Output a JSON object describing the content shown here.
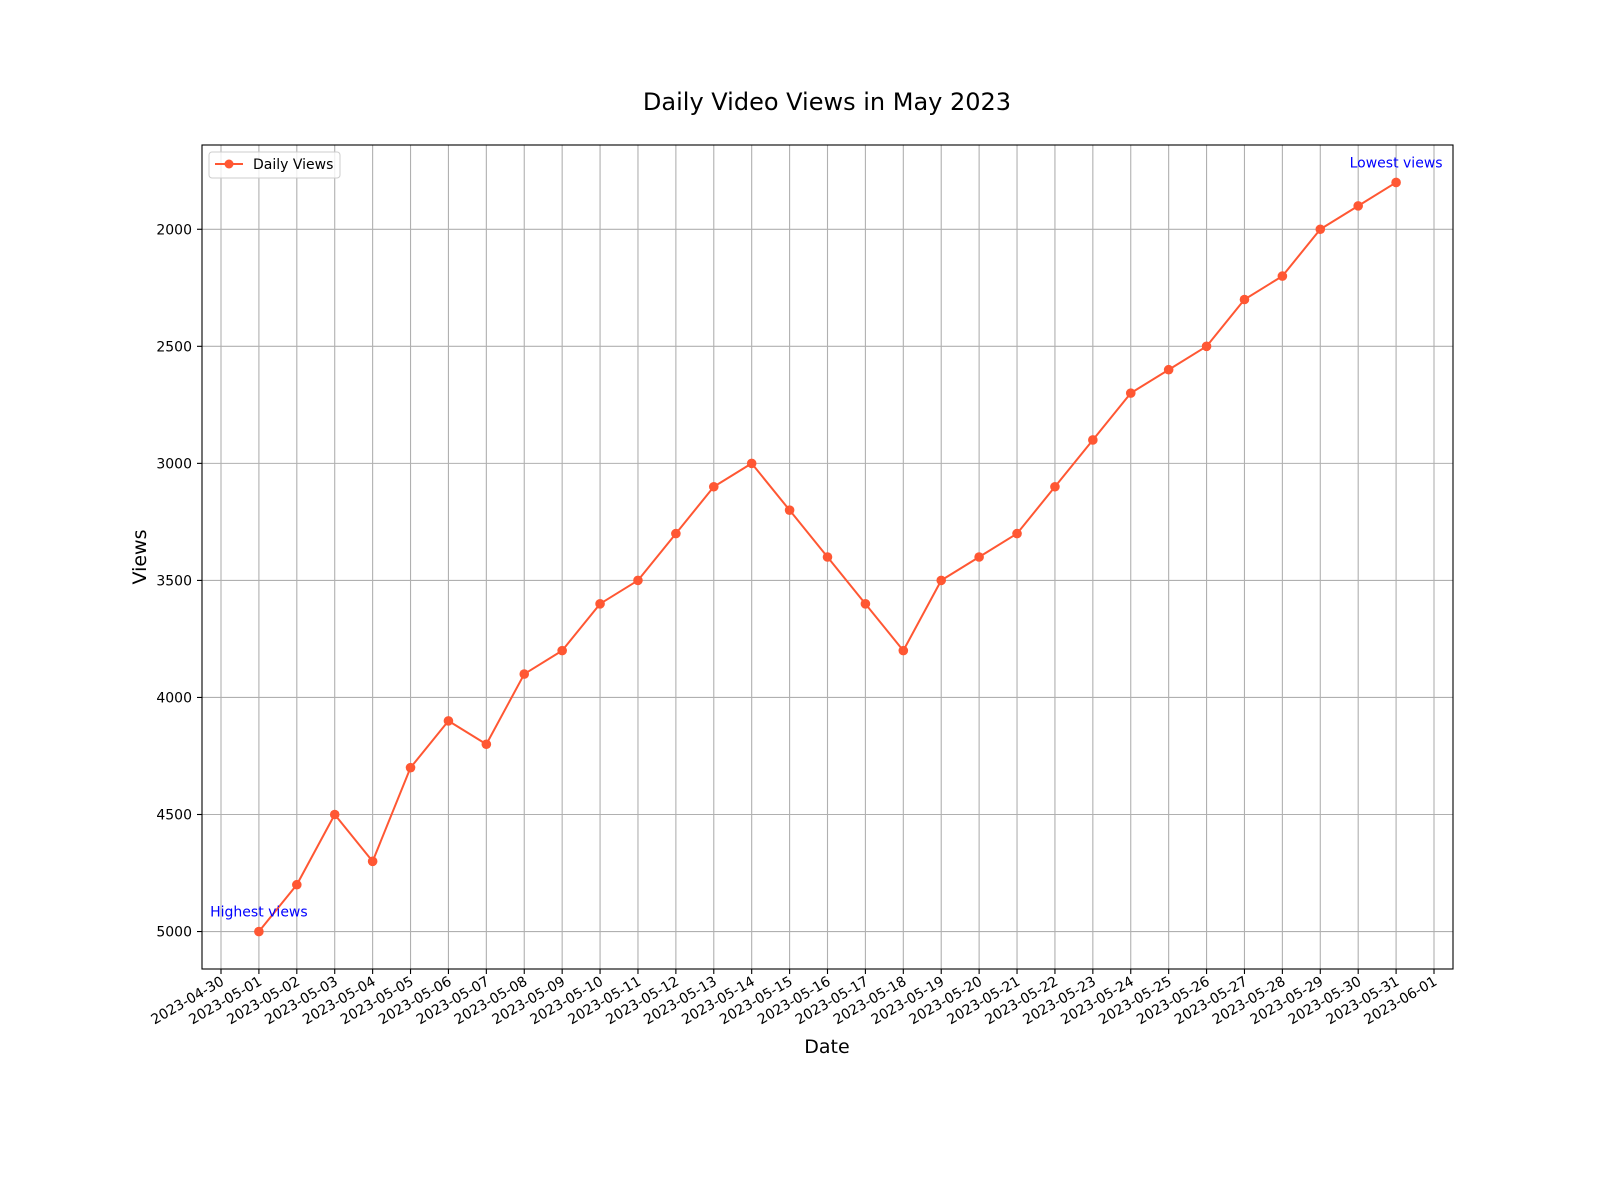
{
  "chart_data": {
    "type": "line",
    "title": "Daily Video Views in May 2023",
    "xlabel": "Date",
    "ylabel": "Views",
    "y_inverted": true,
    "ylim": [
      5160,
      1640
    ],
    "grid": true,
    "legend_placement": "top-left",
    "x_ticks": [
      "2023-04-30",
      "2023-05-01",
      "2023-05-02",
      "2023-05-03",
      "2023-05-04",
      "2023-05-05",
      "2023-05-06",
      "2023-05-07",
      "2023-05-08",
      "2023-05-09",
      "2023-05-10",
      "2023-05-11",
      "2023-05-12",
      "2023-05-13",
      "2023-05-14",
      "2023-05-15",
      "2023-05-16",
      "2023-05-17",
      "2023-05-18",
      "2023-05-19",
      "2023-05-20",
      "2023-05-21",
      "2023-05-22",
      "2023-05-23",
      "2023-05-24",
      "2023-05-25",
      "2023-05-26",
      "2023-05-27",
      "2023-05-28",
      "2023-05-29",
      "2023-05-30",
      "2023-05-31",
      "2023-06-01"
    ],
    "y_ticks": [
      2000,
      2500,
      3000,
      3500,
      4000,
      4500,
      5000
    ],
    "series": [
      {
        "name": "Daily Views",
        "color": "#ff5733",
        "marker": "circle",
        "x": [
          "2023-05-01",
          "2023-05-02",
          "2023-05-03",
          "2023-05-04",
          "2023-05-05",
          "2023-05-06",
          "2023-05-07",
          "2023-05-08",
          "2023-05-09",
          "2023-05-10",
          "2023-05-11",
          "2023-05-12",
          "2023-05-13",
          "2023-05-14",
          "2023-05-15",
          "2023-05-16",
          "2023-05-17",
          "2023-05-18",
          "2023-05-19",
          "2023-05-20",
          "2023-05-21",
          "2023-05-22",
          "2023-05-23",
          "2023-05-24",
          "2023-05-25",
          "2023-05-26",
          "2023-05-27",
          "2023-05-28",
          "2023-05-29",
          "2023-05-30",
          "2023-05-31"
        ],
        "values": [
          5000,
          4800,
          4500,
          4700,
          4300,
          4100,
          4200,
          3900,
          3800,
          3600,
          3500,
          3300,
          3100,
          3000,
          3200,
          3400,
          3600,
          3800,
          3500,
          3400,
          3300,
          3100,
          2900,
          2700,
          2600,
          2500,
          2300,
          2200,
          2000,
          1900,
          1800
        ]
      }
    ],
    "annotations": [
      {
        "text": "Highest views",
        "x": "2023-05-01",
        "y": 5000,
        "color": "#0000ff"
      },
      {
        "text": "Lowest views",
        "x": "2023-05-31",
        "y": 1800,
        "color": "#0000ff"
      }
    ]
  }
}
